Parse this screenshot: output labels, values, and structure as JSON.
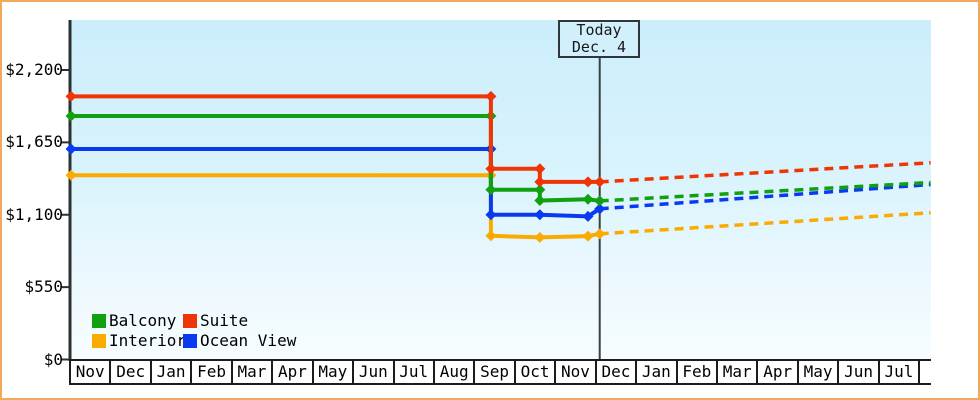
{
  "frame": {
    "border_color": "#f0a95c"
  },
  "today_marker": {
    "label": "Today",
    "date": "Dec. 4"
  },
  "legend": {
    "position": "bottom-left-inside-plot",
    "items": [
      {
        "label": "Balcony",
        "color": "#10a010"
      },
      {
        "label": "Suite",
        "color": "#ef3505"
      },
      {
        "label": "Interior",
        "color": "#fbab00"
      },
      {
        "label": "Ocean View",
        "color": "#0a3af0"
      }
    ]
  },
  "chart_data": {
    "type": "line",
    "title": "",
    "grid": false,
    "background": "light-blue gradient fading downward to white",
    "y_axis": {
      "range": [
        0,
        2580
      ],
      "ticks": [
        {
          "value": 0,
          "label": "$0"
        },
        {
          "value": 550,
          "label": "$550"
        },
        {
          "value": 1100,
          "label": "$1,100"
        },
        {
          "value": 1650,
          "label": "$1,650"
        },
        {
          "value": 2200,
          "label": "$2,200"
        }
      ]
    },
    "x_axis": {
      "unit": "months",
      "span_months": 21.3,
      "month_labels": [
        "Nov",
        "Dec",
        "Jan",
        "Feb",
        "Mar",
        "Apr",
        "May",
        "Jun",
        "Jul",
        "Aug",
        "Sep",
        "Oct",
        "Nov",
        "Dec",
        "Jan",
        "Feb",
        "Mar",
        "Apr",
        "May",
        "Jun",
        "Jul"
      ]
    },
    "today": {
      "label": "Today",
      "date": "Dec. 4",
      "x_months": 13.12
    },
    "series": [
      {
        "name": "Interior",
        "color": "#fbab00",
        "solid_points": [
          [
            0.05,
            1400
          ],
          [
            10.43,
            1400
          ],
          [
            10.43,
            940
          ],
          [
            11.64,
            928
          ],
          [
            12.83,
            938
          ],
          [
            13.12,
            955
          ]
        ],
        "projected_points": [
          [
            13.12,
            955
          ],
          [
            21.3,
            1115
          ]
        ]
      },
      {
        "name": "Ocean View",
        "color": "#0a3af0",
        "solid_points": [
          [
            0.05,
            1600
          ],
          [
            10.43,
            1600
          ],
          [
            10.43,
            1100
          ],
          [
            11.64,
            1100
          ],
          [
            12.83,
            1088
          ],
          [
            13.12,
            1145
          ]
        ],
        "projected_points": [
          [
            13.12,
            1145
          ],
          [
            21.3,
            1330
          ]
        ]
      },
      {
        "name": "Balcony",
        "color": "#10a010",
        "solid_points": [
          [
            0.05,
            1850
          ],
          [
            10.43,
            1850
          ],
          [
            10.43,
            1290
          ],
          [
            11.64,
            1290
          ],
          [
            11.64,
            1208
          ],
          [
            12.83,
            1218
          ],
          [
            13.12,
            1205
          ]
        ],
        "projected_points": [
          [
            13.12,
            1205
          ],
          [
            21.3,
            1345
          ]
        ]
      },
      {
        "name": "Suite",
        "color": "#ef3505",
        "solid_points": [
          [
            0.05,
            2000
          ],
          [
            10.43,
            2000
          ],
          [
            10.43,
            1450
          ],
          [
            11.64,
            1450
          ],
          [
            11.64,
            1350
          ],
          [
            12.83,
            1350
          ],
          [
            13.12,
            1350
          ]
        ],
        "projected_points": [
          [
            13.12,
            1350
          ],
          [
            21.3,
            1495
          ]
        ]
      }
    ]
  }
}
